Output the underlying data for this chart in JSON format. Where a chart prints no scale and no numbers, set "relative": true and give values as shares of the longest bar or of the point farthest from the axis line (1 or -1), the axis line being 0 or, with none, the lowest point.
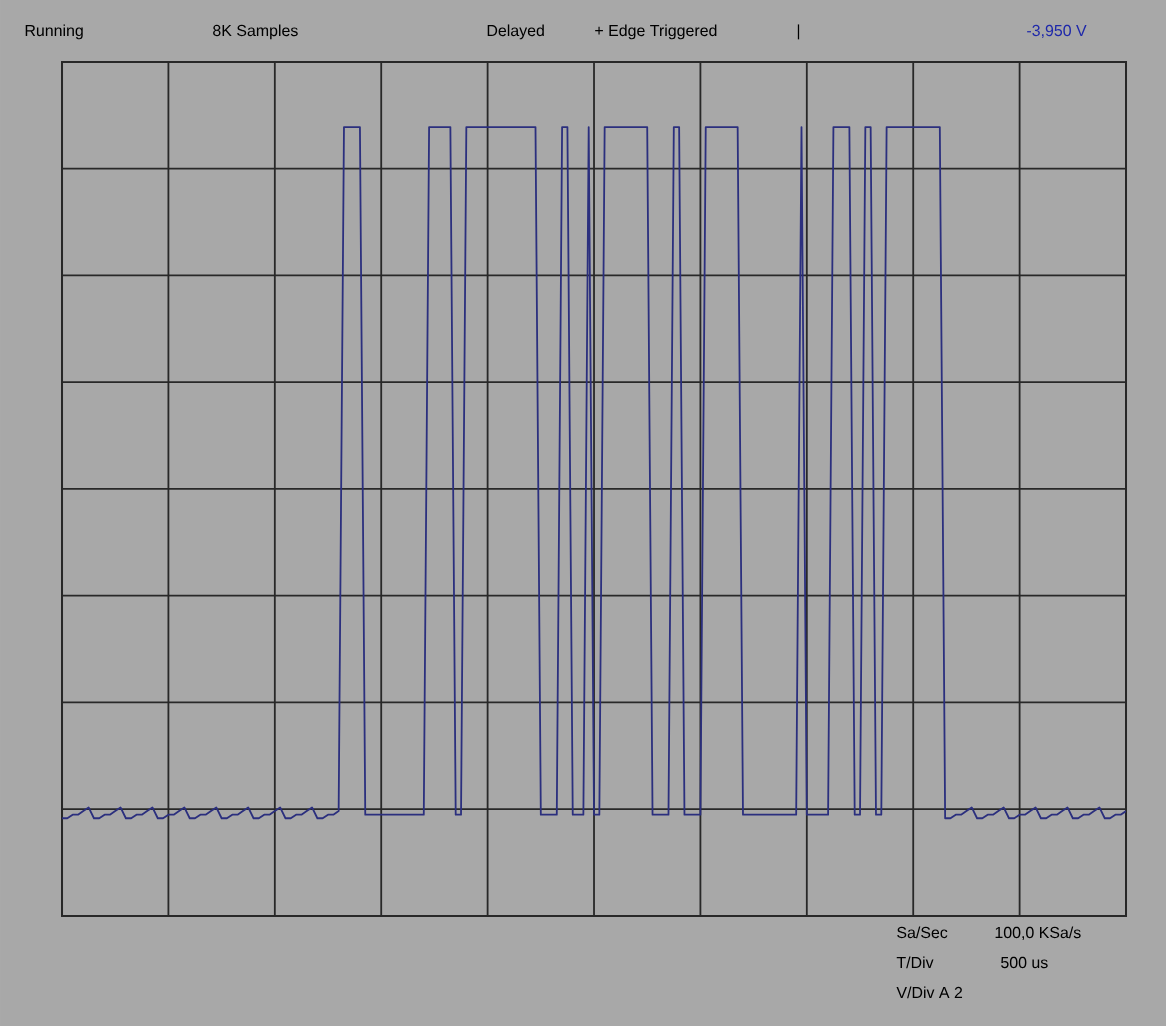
{
  "chart_data": {
    "type": "line",
    "relative": true,
    "grid": true,
    "marker": "none",
    "line_style": "solid",
    "annotations": [
      "Running",
      "8K Samples",
      "Delayed",
      "+ Edge Triggered",
      "|",
      "-3,950 V",
      "Sa/Sec",
      "100,0 KSa/s",
      "T/Div",
      "500 us",
      "V/Div  A 2"
    ],
    "categories": [
      null,
      null,
      null,
      null,
      null,
      null,
      null,
      null,
      null,
      null,
      null,
      null,
      null,
      null,
      null,
      null,
      null,
      null,
      null,
      null,
      null,
      null,
      null,
      null,
      null,
      null,
      null,
      null,
      null,
      null,
      null,
      null,
      null,
      null,
      null,
      null,
      null,
      null,
      null,
      null,
      null,
      null,
      null,
      null,
      null,
      null,
      null,
      null,
      null,
      null,
      null,
      null,
      null,
      null,
      null,
      null,
      null,
      null,
      null,
      null,
      null,
      null,
      null,
      null,
      null,
      null,
      null,
      null,
      null,
      null,
      null,
      null,
      null,
      null,
      null,
      null,
      null,
      null,
      null,
      null,
      null,
      null,
      null,
      null,
      null,
      null,
      null,
      null,
      null,
      null,
      null,
      null,
      null,
      null,
      null,
      null,
      null,
      null,
      null,
      null,
      null,
      null,
      null,
      null,
      null,
      null,
      null,
      null,
      null,
      null,
      null,
      null,
      null,
      null,
      null,
      null,
      null,
      null,
      null,
      null,
      null,
      null,
      null,
      null,
      null,
      null,
      null,
      null,
      null,
      null,
      null,
      null,
      null,
      null,
      null,
      null,
      null,
      null,
      null,
      null,
      null,
      null,
      null,
      null,
      null,
      null,
      null,
      null,
      null,
      null,
      null,
      null,
      null,
      null,
      null,
      null,
      null,
      null,
      null,
      null,
      null,
      null,
      null,
      null,
      null,
      null,
      null,
      null,
      null,
      null,
      null,
      null,
      null,
      null,
      null,
      null,
      null,
      null,
      null,
      null,
      null,
      null,
      null,
      null,
      null,
      null,
      null,
      null,
      null,
      null,
      null,
      null,
      null,
      null,
      null,
      null,
      null,
      null,
      null,
      null,
      null
    ],
    "series": [
      {
        "color": "#2b2f7e",
        "values": [
          -0.91,
          -0.91,
          -0.9,
          -0.9,
          -0.89,
          -0.88,
          -0.91,
          -0.91,
          -0.9,
          -0.9,
          -0.89,
          -0.88,
          -0.91,
          -0.91,
          -0.9,
          -0.9,
          -0.89,
          -0.88,
          -0.91,
          -0.91,
          -0.9,
          -0.9,
          -0.89,
          -0.88,
          -0.91,
          -0.91,
          -0.9,
          -0.9,
          -0.89,
          -0.88,
          -0.91,
          -0.91,
          -0.9,
          -0.9,
          -0.89,
          -0.88,
          -0.91,
          -0.91,
          -0.9,
          -0.9,
          -0.89,
          -0.88,
          -0.91,
          -0.91,
          -0.9,
          -0.9,
          -0.89,
          -0.88,
          -0.91,
          -0.91,
          -0.9,
          -0.9,
          -0.89,
          1,
          1,
          1,
          1,
          -0.9,
          -0.9,
          -0.9,
          -0.9,
          -0.9,
          -0.9,
          -0.9,
          -0.9,
          -0.9,
          -0.9,
          -0.9,
          -0.9,
          1,
          1,
          1,
          1,
          1,
          -0.9,
          -0.9,
          1,
          1,
          1,
          1,
          1,
          1,
          1,
          1,
          1,
          1,
          1,
          1,
          1,
          1,
          -0.9,
          -0.9,
          -0.9,
          -0.9,
          1,
          1,
          -0.9,
          -0.9,
          -0.9,
          1,
          -0.9,
          -0.9,
          1,
          1,
          1,
          1,
          1,
          1,
          1,
          1,
          1,
          -0.9,
          -0.9,
          -0.9,
          -0.9,
          1,
          1,
          -0.9,
          -0.9,
          -0.9,
          -0.9,
          1,
          1,
          1,
          1,
          1,
          1,
          1,
          -0.9,
          -0.9,
          -0.9,
          -0.9,
          -0.9,
          -0.9,
          -0.9,
          -0.9,
          -0.9,
          -0.9,
          -0.9,
          1,
          -0.9,
          -0.9,
          -0.9,
          -0.9,
          -0.9,
          1,
          1,
          1,
          1,
          -0.9,
          -0.9,
          1,
          1,
          -0.9,
          -0.9,
          1,
          1,
          1,
          1,
          1,
          1,
          1,
          1,
          1,
          1,
          1,
          -0.91,
          -0.91,
          -0.9,
          -0.9,
          -0.89,
          -0.88,
          -0.91,
          -0.91,
          -0.9,
          -0.9,
          -0.89,
          -0.88,
          -0.91,
          -0.91,
          -0.9,
          -0.9,
          -0.89,
          -0.88,
          -0.91,
          -0.91,
          -0.9,
          -0.9,
          -0.89,
          -0.88,
          -0.91,
          -0.91,
          -0.9,
          -0.9,
          -0.89,
          -0.88,
          -0.91,
          -0.91,
          -0.9,
          -0.9,
          -0.89
        ]
      }
    ]
  }
}
